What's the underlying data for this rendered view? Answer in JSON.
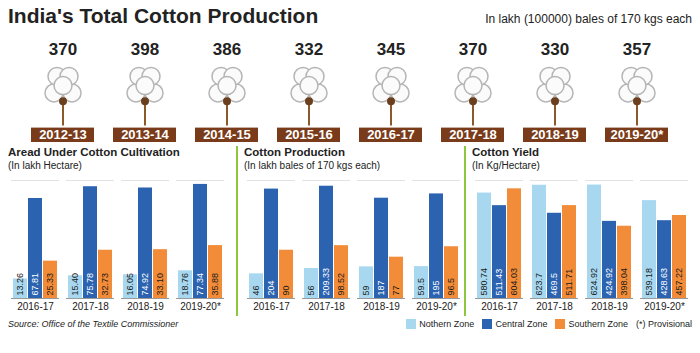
{
  "chart_data": [
    {
      "type": "pictogram",
      "title": "India's Total Cotton Production",
      "subtitle": "In lakh (100000) bales of 170 kgs each",
      "categories": [
        "2012-13",
        "2013-14",
        "2014-15",
        "2015-16",
        "2016-17",
        "2017-18",
        "2018-19",
        "2019-20*"
      ],
      "values": [
        370,
        398,
        386,
        332,
        345,
        370,
        330,
        357
      ],
      "data_labels": true,
      "tick_labels": "x"
    },
    {
      "type": "bar",
      "title": "Aread Under Cotton Cultivation",
      "subtitle": "(In lakh Hectare)",
      "categories": [
        "2016-17",
        "2017-18",
        "2018-19",
        "2019-20*"
      ],
      "series": [
        {
          "name": "Nothern Zone",
          "color": "#a8d8f0",
          "values": [
            13.26,
            15.4,
            16.05,
            18.76
          ],
          "value_labels": [
            "13.26",
            "15.40",
            "16.05",
            "18.76"
          ]
        },
        {
          "name": "Central Zone",
          "color": "#2b63b0",
          "values": [
            67.81,
            75.78,
            74.92,
            77.34
          ],
          "value_labels": [
            "67.81",
            "75.78",
            "74.92",
            "77.34"
          ]
        },
        {
          "name": "Southern Zone",
          "color": "#f28c38",
          "values": [
            25.33,
            32.73,
            33.1,
            35.88
          ],
          "value_labels": [
            "25.33",
            "32.73",
            "33.10",
            "35.88"
          ]
        }
      ],
      "ylim": [
        0,
        80
      ],
      "yticks": [],
      "grid": false,
      "data_labels": true,
      "tick_labels": "x",
      "source": "Source: Office of the Textile Commissioner"
    },
    {
      "type": "bar",
      "title": "Cotton Production",
      "subtitle": "(In lakh bales of 170 kgs each)",
      "categories": [
        "2016-17",
        "2017-18",
        "2018-19",
        "2019-20*"
      ],
      "series": [
        {
          "name": "Nothern Zone",
          "color": "#a8d8f0",
          "values": [
            46,
            56,
            59,
            59.5
          ]
        },
        {
          "name": "Central Zone",
          "color": "#2b63b0",
          "values": [
            204,
            209.33,
            187,
            195
          ]
        },
        {
          "name": "Southern Zone",
          "color": "#f28c38",
          "values": [
            90,
            98.52,
            77,
            96.5
          ]
        }
      ],
      "ylim": [
        0,
        220
      ],
      "yticks": [],
      "grid": false,
      "data_labels": true,
      "tick_labels": "x"
    },
    {
      "type": "bar",
      "title": "Cotton Yield",
      "subtitle": "(In Kg/Hectare)",
      "categories": [
        "2016-17",
        "2017-18",
        "2018-19",
        "2019-20*"
      ],
      "series": [
        {
          "name": "Nothern Zone",
          "color": "#a8d8f0",
          "values": [
            580.74,
            623.7,
            624.92,
            539.18
          ]
        },
        {
          "name": "Central Zone",
          "color": "#2b63b0",
          "values": [
            511.43,
            469.5,
            424.92,
            428.63
          ]
        },
        {
          "name": "Southern Zone",
          "color": "#f28c38",
          "values": [
            604.03,
            511.71,
            398.04,
            457.22
          ]
        }
      ],
      "ylim": [
        0,
        650
      ],
      "yticks": [],
      "grid": false,
      "data_labels": true,
      "tick_labels": "x",
      "legend": "bottom",
      "annotations": [
        "(*) Provisional"
      ]
    }
  ]
}
